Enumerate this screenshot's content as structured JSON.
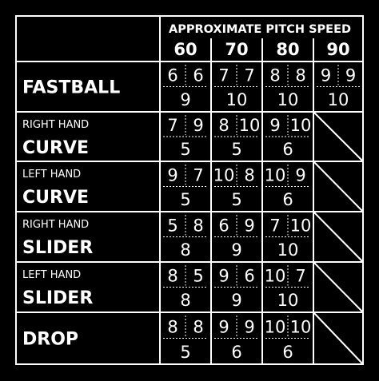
{
  "header": {
    "title": "APPROXIMATE PITCH  SPEED",
    "speeds": [
      "60",
      "70",
      "80",
      "90"
    ]
  },
  "rows": [
    {
      "hand": "",
      "pitch": "FASTBALL",
      "cells": [
        {
          "a": "6",
          "b": "6",
          "c": "9"
        },
        {
          "a": "7",
          "b": "7",
          "c": "10"
        },
        {
          "a": "8",
          "b": "8",
          "c": "10"
        },
        {
          "a": "9",
          "b": "9",
          "c": "10"
        }
      ]
    },
    {
      "hand": "RIGHT HAND",
      "pitch": "CURVE",
      "cells": [
        {
          "a": "7",
          "b": "9",
          "c": "5"
        },
        {
          "a": "8",
          "b": "10",
          "c": "5"
        },
        {
          "a": "9",
          "b": "10",
          "c": "6"
        },
        null
      ]
    },
    {
      "hand": "LEFT HAND",
      "pitch": "CURVE",
      "cells": [
        {
          "a": "9",
          "b": "7",
          "c": "5"
        },
        {
          "a": "10",
          "b": "8",
          "c": "5"
        },
        {
          "a": "10",
          "b": "9",
          "c": "6"
        },
        null
      ]
    },
    {
      "hand": "RIGHT HAND",
      "pitch": "SLIDER",
      "cells": [
        {
          "a": "5",
          "b": "8",
          "c": "8"
        },
        {
          "a": "6",
          "b": "9",
          "c": "9"
        },
        {
          "a": "7",
          "b": "10",
          "c": "10"
        },
        null
      ]
    },
    {
      "hand": "LEFT HAND",
      "pitch": "SLIDER",
      "cells": [
        {
          "a": "8",
          "b": "5",
          "c": "8"
        },
        {
          "a": "9",
          "b": "6",
          "c": "9"
        },
        {
          "a": "10",
          "b": "7",
          "c": "10"
        },
        null
      ]
    },
    {
      "hand": "",
      "pitch": "DROP",
      "cells": [
        {
          "a": "8",
          "b": "8",
          "c": "5"
        },
        {
          "a": "9",
          "b": "9",
          "c": "6"
        },
        {
          "a": "10",
          "b": "10",
          "c": "6"
        },
        null
      ]
    }
  ],
  "colors": {
    "background": "#000000",
    "lines": "#ffffff",
    "text": "#ffffff"
  }
}
